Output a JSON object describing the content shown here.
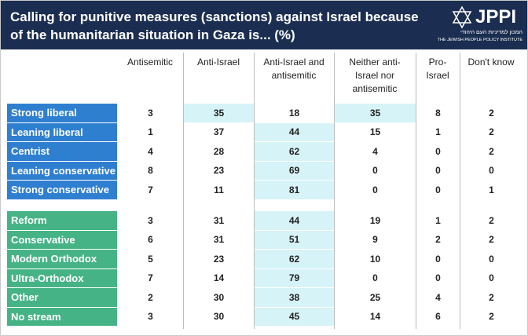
{
  "header": {
    "title": "Calling for punitive measures (sanctions) against Israel because of the humanitarian situation in Gaza is... (%)",
    "logo": {
      "name": "JPPI",
      "hebrew": "המכון למדיניות העם היהודי",
      "english": "THE JEWISH PEOPLE POLICY INSTITUTE"
    }
  },
  "table": {
    "columns": [
      "Antisemitic",
      "Anti-Israel",
      "Anti-Israel and antisemitic",
      "Neither anti-Israel nor antisemitic",
      "Pro-Israel",
      "Don't know"
    ],
    "groups": [
      {
        "color": "#2f7fd1",
        "rows": [
          {
            "label": "Strong liberal",
            "values": [
              3,
              35,
              18,
              35,
              8,
              2
            ]
          },
          {
            "label": "Leaning liberal",
            "values": [
              1,
              37,
              44,
              15,
              1,
              2
            ]
          },
          {
            "label": "Centrist",
            "values": [
              4,
              28,
              62,
              4,
              0,
              2
            ]
          },
          {
            "label": "Leaning conservative",
            "values": [
              8,
              23,
              69,
              0,
              0,
              0
            ]
          },
          {
            "label": "Strong conservative",
            "values": [
              7,
              11,
              81,
              0,
              0,
              1
            ]
          }
        ]
      },
      {
        "color": "#46b386",
        "rows": [
          {
            "label": "Reform",
            "values": [
              3,
              31,
              44,
              19,
              1,
              2
            ]
          },
          {
            "label": "Conservative",
            "values": [
              6,
              31,
              51,
              9,
              2,
              2
            ]
          },
          {
            "label": "Modern Orthodox",
            "values": [
              5,
              23,
              62,
              10,
              0,
              0
            ]
          },
          {
            "label": "Ultra-Orthodox",
            "values": [
              7,
              14,
              79,
              0,
              0,
              0
            ]
          },
          {
            "label": "Other",
            "values": [
              2,
              30,
              38,
              25,
              4,
              2
            ]
          },
          {
            "label": "No stream",
            "values": [
              3,
              30,
              45,
              14,
              6,
              2
            ]
          }
        ]
      }
    ]
  }
}
